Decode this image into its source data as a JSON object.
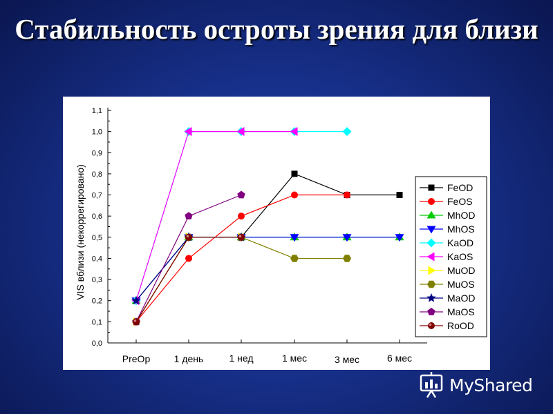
{
  "slide": {
    "title": "Стабильность остроты зрения для близи",
    "watermark": "MyShared"
  },
  "chart_data": {
    "type": "line",
    "title": "",
    "xlabel": "",
    "ylabel": "VIS вблизи (некоррегировано)",
    "categories": [
      "PreOp",
      "1 день",
      "1 нед",
      "1 мес",
      "3 мес",
      "6 мес"
    ],
    "ylim": [
      0,
      1.1
    ],
    "yticks": [
      "0,0",
      "0,1",
      "0,2",
      "0,3",
      "0,4",
      "0,5",
      "0,6",
      "0,7",
      "0,8",
      "0,9",
      "1,0",
      "1,1"
    ],
    "grid": false,
    "legend_position": "right",
    "series": [
      {
        "name": "FeOD",
        "color": "#000000",
        "marker": "square",
        "values": [
          0.1,
          0.5,
          0.5,
          0.8,
          0.7,
          0.7
        ]
      },
      {
        "name": "FeOS",
        "color": "#ff0000",
        "marker": "circle",
        "values": [
          0.1,
          0.4,
          0.6,
          0.7,
          0.7,
          null
        ]
      },
      {
        "name": "MhOD",
        "color": "#00cc00",
        "marker": "triangle-up",
        "values": [
          0.2,
          0.5,
          0.5,
          0.5,
          0.5,
          0.5
        ]
      },
      {
        "name": "MhOS",
        "color": "#0000ff",
        "marker": "triangle-down",
        "values": [
          0.2,
          0.5,
          0.5,
          0.5,
          0.5,
          0.5
        ]
      },
      {
        "name": "KaOD",
        "color": "#00ffff",
        "marker": "diamond",
        "values": [
          0.2,
          1.0,
          1.0,
          1.0,
          1.0,
          null
        ]
      },
      {
        "name": "KaOS",
        "color": "#ff00ff",
        "marker": "triangle-left",
        "values": [
          0.2,
          1.0,
          1.0,
          1.0,
          null,
          null
        ]
      },
      {
        "name": "MuOD",
        "color": "#ffff00",
        "marker": "triangle-right",
        "values": [
          0.1,
          0.5,
          0.5,
          null,
          null,
          null
        ]
      },
      {
        "name": "MuOS",
        "color": "#808000",
        "marker": "hexagon",
        "values": [
          0.1,
          0.5,
          0.5,
          0.4,
          0.4,
          null
        ]
      },
      {
        "name": "MaOD",
        "color": "#000080",
        "marker": "star",
        "values": [
          0.2,
          0.5,
          0.5,
          null,
          null,
          null
        ]
      },
      {
        "name": "MaOS",
        "color": "#800080",
        "marker": "pentagon",
        "values": [
          0.1,
          0.6,
          0.7,
          null,
          null,
          null
        ]
      },
      {
        "name": "RoOD",
        "color": "#800000",
        "marker": "sphere",
        "values": [
          0.1,
          0.5,
          0.5,
          null,
          null,
          null
        ]
      }
    ]
  }
}
